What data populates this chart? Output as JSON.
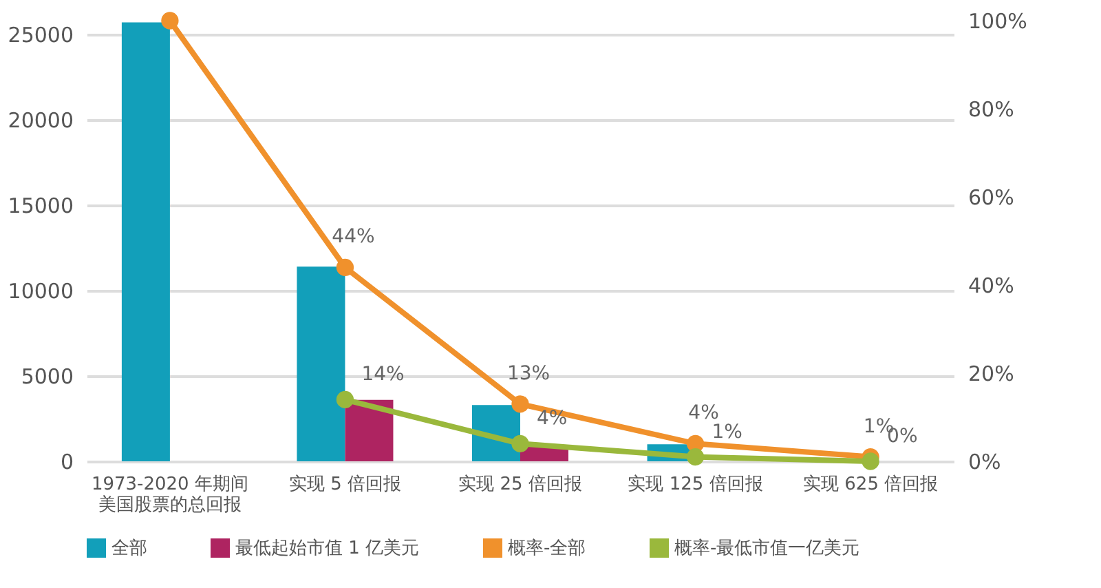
{
  "chart_data": {
    "type": "bar",
    "categories": [
      "1973-2020 年期间美国股票的总回报",
      "实现 5 倍回报",
      "实现 25 倍回报",
      "实现 125 倍回报",
      "实现 625 倍回报"
    ],
    "series": [
      {
        "name": "全部",
        "type": "bar",
        "color": "#129fba",
        "values": [
          25700,
          11400,
          3300,
          1000,
          null
        ]
      },
      {
        "name": "最低起始市值 1 亿美元",
        "type": "bar",
        "color": "#ae2461",
        "values": [
          null,
          3600,
          900,
          null,
          0
        ]
      },
      {
        "name": "概率-全部",
        "type": "line",
        "axis": "y2",
        "color": "#f0912c",
        "marker": "circle",
        "values": [
          100,
          44,
          13,
          4,
          1
        ],
        "value_labels": [
          null,
          "44%",
          "13%",
          "4%",
          "1%"
        ]
      },
      {
        "name": "概率-最低市值一亿美元",
        "type": "line",
        "axis": "y2",
        "color": "#9ab83c",
        "marker": "circle",
        "values": [
          null,
          14,
          4,
          1,
          0
        ],
        "value_labels": [
          null,
          "14%",
          "4%",
          "1%",
          "0%"
        ]
      }
    ],
    "ylim": [
      0,
      25800
    ],
    "yticks": [
      0,
      5000,
      10000,
      15000,
      20000,
      25000
    ],
    "y2lim": [
      0,
      100
    ],
    "y2ticks": [
      {
        "value": 0,
        "label": "0%"
      },
      {
        "value": 20,
        "label": "20%"
      },
      {
        "value": 40,
        "label": "40%"
      },
      {
        "value": 60,
        "label": "60%"
      },
      {
        "value": 80,
        "label": "80%"
      },
      {
        "value": 100,
        "label": "100%"
      }
    ],
    "grid": "y",
    "legend": "bottom"
  }
}
